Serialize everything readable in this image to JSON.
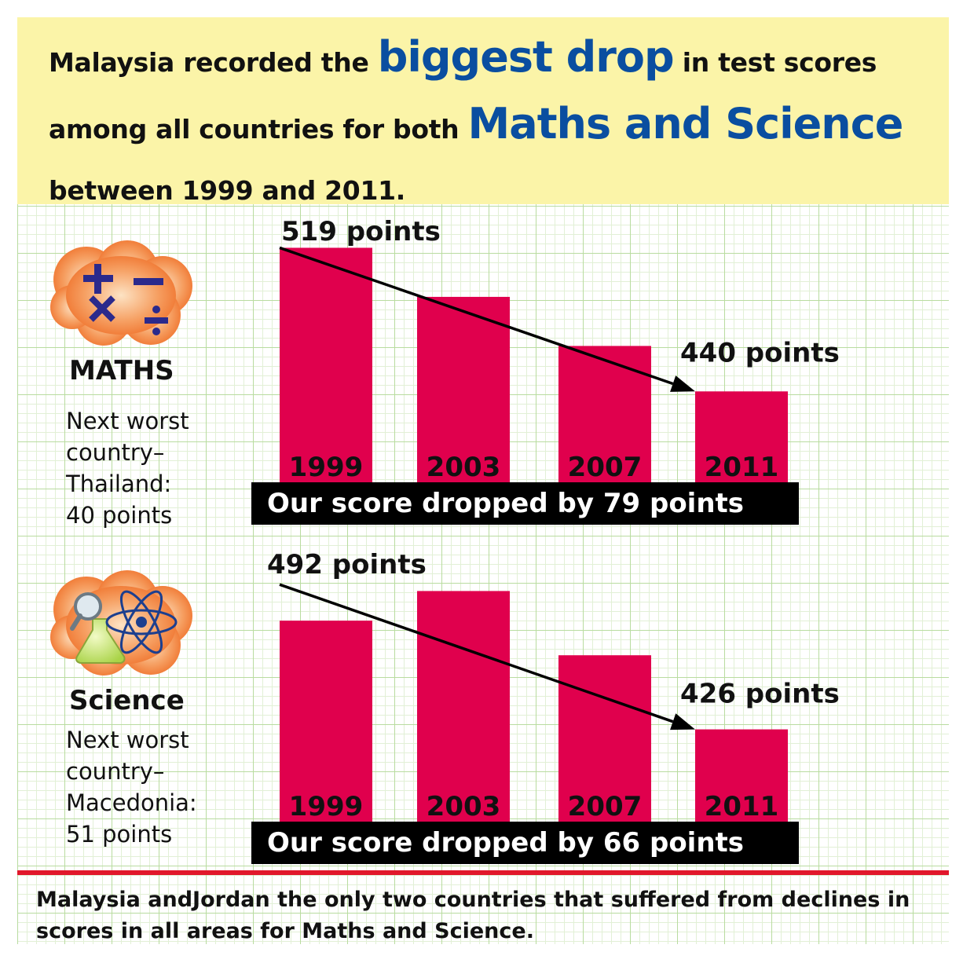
{
  "headline": {
    "part1": "Malaysia recorded the ",
    "emph1": "biggest drop",
    "part2": " in test scores among all countries for both ",
    "emph2": "Maths and Science",
    "part3": " between 1999 and 2011."
  },
  "maths": {
    "title": "MATHS",
    "note_line1": "Next worst",
    "note_line2": "country–",
    "note_line3": "Thailand:",
    "note_line4": "40 points",
    "drop_text": "Our score dropped by 79 points",
    "icon_name": "math-operators-icon"
  },
  "science": {
    "title": "Science",
    "note_line1": "Next worst",
    "note_line2": "country–",
    "note_line3": "Macedonia:",
    "note_line4": "51 points",
    "drop_text": "Our score dropped by 66 points",
    "icon_name": "science-atom-icon"
  },
  "footer": {
    "text": "Malaysia andJordan the only two countries that suffered from declines in scores in all areas for Maths and Science."
  },
  "colors": {
    "bar": "#e0004d",
    "accent_blue": "#0a4ea0",
    "headline_bg": "#fbf4a8",
    "rule_red": "#e1172b"
  },
  "chart_data": [
    {
      "type": "bar",
      "title": "MATHS",
      "categories": [
        "1999",
        "2003",
        "2007",
        "2011"
      ],
      "values": [
        519,
        492,
        465,
        440
      ],
      "ylim": [
        390,
        530
      ],
      "annotations": [
        {
          "category": "1999",
          "label": "519 points"
        },
        {
          "category": "2011",
          "label": "440 points"
        }
      ],
      "trend_arrow": {
        "from": "1999",
        "to": "2011"
      }
    },
    {
      "type": "bar",
      "title": "Science",
      "categories": [
        "1999",
        "2003",
        "2007",
        "2011"
      ],
      "values": [
        492,
        510,
        471,
        426
      ],
      "ylim": [
        370,
        535
      ],
      "annotations": [
        {
          "category": "1999",
          "label": "492 points"
        },
        {
          "category": "2011",
          "label": "426 points"
        }
      ],
      "trend_arrow": {
        "from": "1999",
        "to": "2011"
      }
    }
  ]
}
